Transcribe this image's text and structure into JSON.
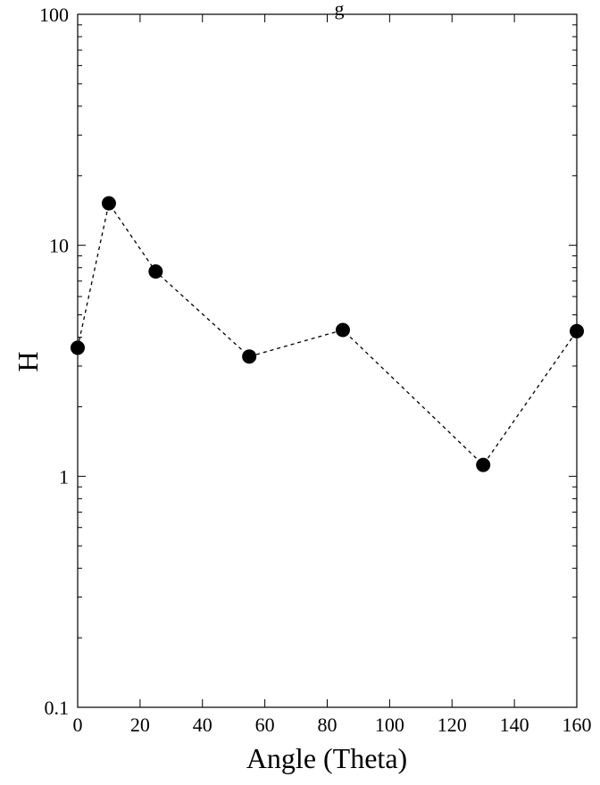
{
  "chart_data": {
    "type": "scatter",
    "title": "g",
    "xlabel": "Angle (Theta)",
    "ylabel": "H",
    "xlim": [
      0,
      160
    ],
    "ylim": [
      0.1,
      100
    ],
    "yscale": "log",
    "grid": false,
    "legend": "none",
    "x_ticks": [
      0,
      20,
      40,
      60,
      80,
      100,
      120,
      140,
      160
    ],
    "x_tick_labels": [
      "0",
      "20",
      "40",
      "60",
      "80",
      "100",
      "120",
      "140",
      "160"
    ],
    "y_ticks": [
      0.1,
      1,
      10,
      100
    ],
    "y_tick_labels": [
      "0.1",
      "1",
      "10",
      "100"
    ],
    "series": [
      {
        "x": [
          0,
          10,
          25,
          55,
          85,
          130,
          160
        ],
        "y": [
          3.6,
          15.2,
          7.7,
          3.3,
          4.3,
          1.12,
          4.25
        ],
        "marker": "filled-circle",
        "line": "dashed",
        "color": "#000000"
      }
    ]
  }
}
